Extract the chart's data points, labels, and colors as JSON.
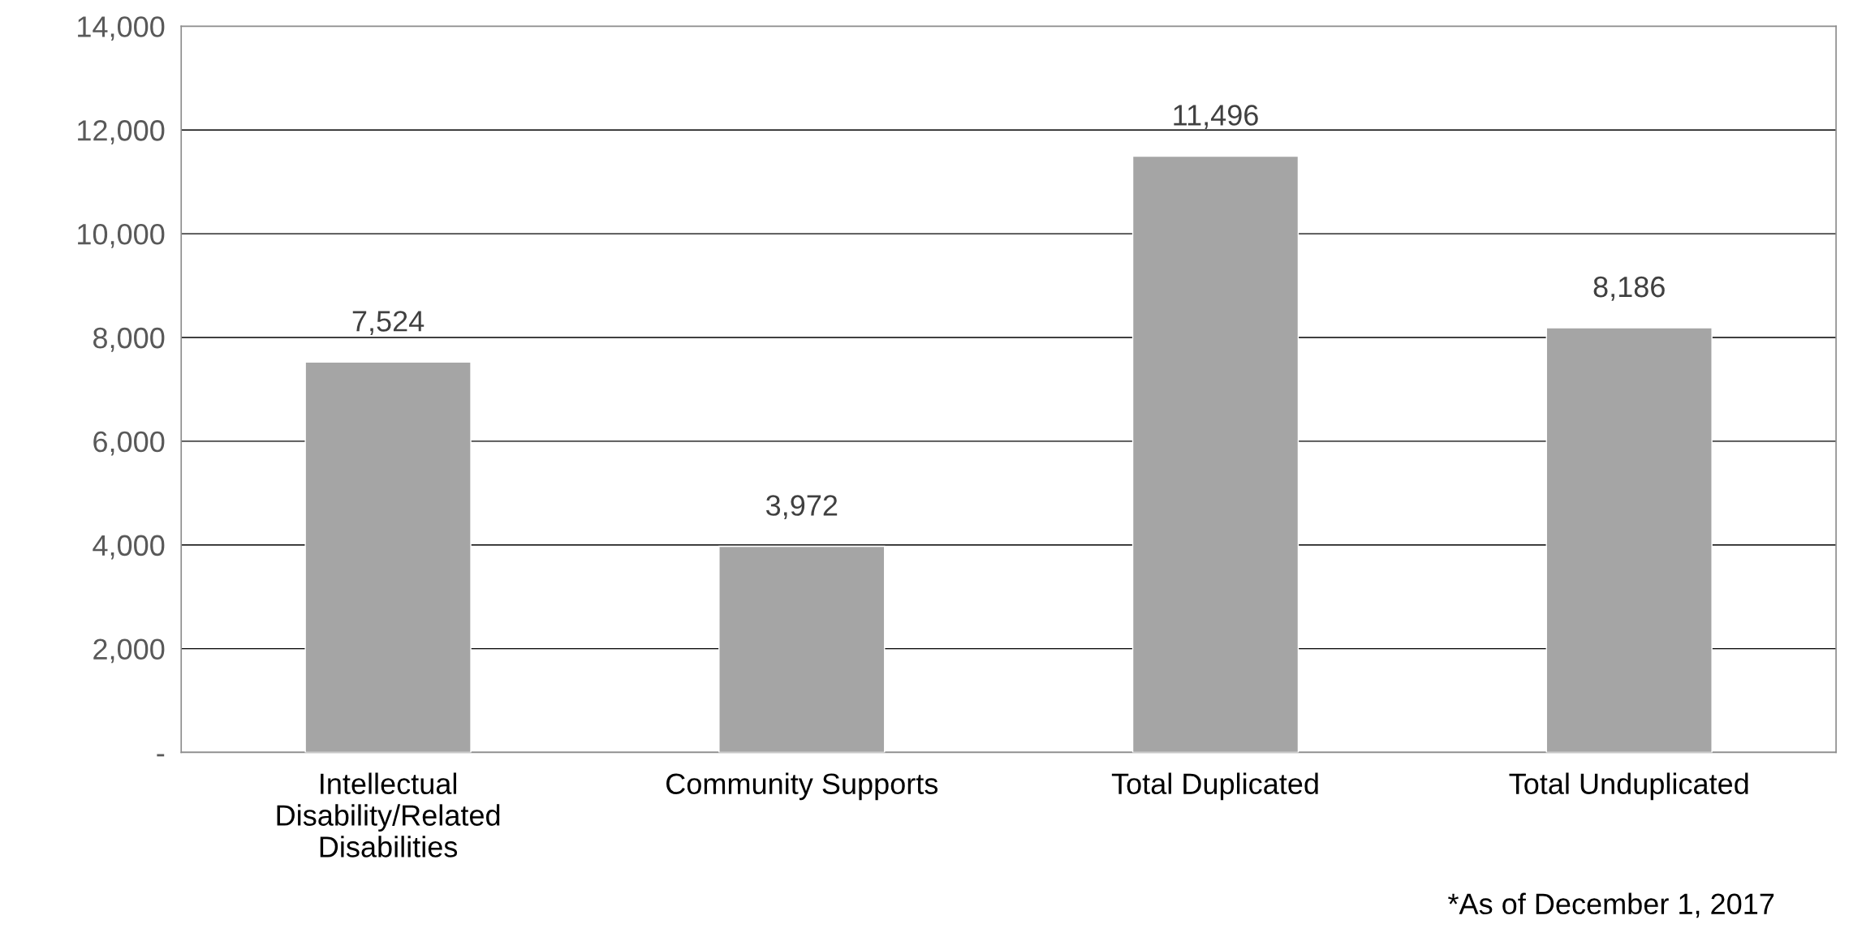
{
  "chart_data": {
    "type": "bar",
    "categories": [
      "Intellectual\nDisability/Related\nDisabilities",
      "Community Supports",
      "Total Duplicated",
      "Total Unduplicated"
    ],
    "values": [
      7524,
      3972,
      11496,
      8186
    ],
    "value_labels": [
      "7,524",
      "3,972",
      "11,496",
      "8,186"
    ],
    "color": "#a5a5a5",
    "ylim": [
      0,
      14000
    ],
    "yticks": [
      {
        "value": 0,
        "label": "-"
      },
      {
        "value": 2000,
        "label": "2,000"
      },
      {
        "value": 4000,
        "label": "4,000"
      },
      {
        "value": 6000,
        "label": "6,000"
      },
      {
        "value": 8000,
        "label": "8,000"
      },
      {
        "value": 10000,
        "label": "10,000"
      },
      {
        "value": 12000,
        "label": "12,000"
      },
      {
        "value": 14000,
        "label": "14,000"
      }
    ],
    "grid": "y",
    "legend": false,
    "annotations": [
      "*As of December 1, 2017"
    ]
  }
}
